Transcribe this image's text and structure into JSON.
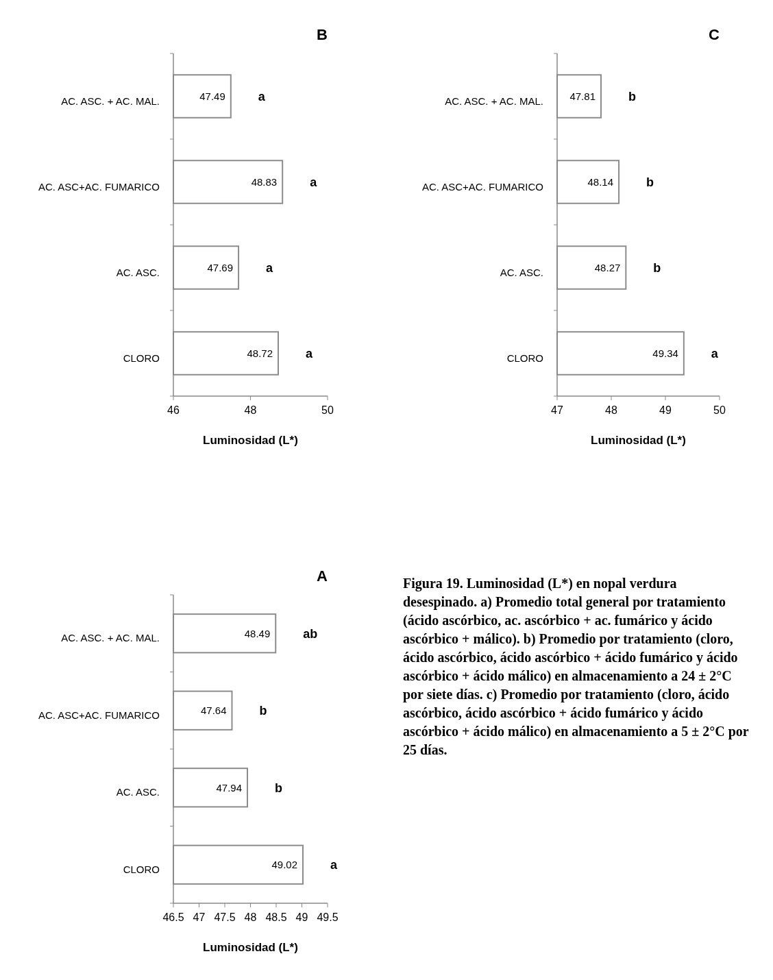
{
  "chart_data": [
    {
      "type": "bar",
      "orientation": "horizontal",
      "title": "B",
      "xlabel": "Luminosidad (L*)",
      "categories": [
        "AC. ASC. + AC. MAL.",
        "AC. ASC+AC. FUMARICO",
        "AC. ASC.",
        "CLORO"
      ],
      "values": [
        47.49,
        48.83,
        47.69,
        48.72
      ],
      "color": "#ffffff",
      "xlim": [
        46,
        50
      ],
      "xticks": [
        46,
        48,
        50
      ],
      "data_labels": true,
      "annotations": [
        {
          "text": "a",
          "x": 47.49,
          "y": "AC. ASC. + AC. MAL."
        },
        {
          "text": "a",
          "x": 48.83,
          "y": "AC. ASC+AC. FUMARICO"
        },
        {
          "text": "a",
          "x": 47.69,
          "y": "AC. ASC."
        },
        {
          "text": "a",
          "x": 48.72,
          "y": "CLORO"
        }
      ]
    },
    {
      "type": "bar",
      "orientation": "horizontal",
      "title": "C",
      "xlabel": "Luminosidad (L*)",
      "categories": [
        "AC. ASC. + AC. MAL.",
        "AC. ASC+AC. FUMARICO",
        "AC. ASC.",
        "CLORO"
      ],
      "values": [
        47.81,
        48.14,
        48.27,
        49.34
      ],
      "color": "#ffffff",
      "xlim": [
        47,
        50
      ],
      "xticks": [
        47,
        48,
        49,
        50
      ],
      "data_labels": true,
      "annotations": [
        {
          "text": "b",
          "x": 47.81,
          "y": "AC. ASC. + AC. MAL."
        },
        {
          "text": "b",
          "x": 48.14,
          "y": "AC. ASC+AC. FUMARICO"
        },
        {
          "text": "b",
          "x": 48.27,
          "y": "AC. ASC."
        },
        {
          "text": "a",
          "x": 49.34,
          "y": "CLORO"
        }
      ]
    },
    {
      "type": "bar",
      "orientation": "horizontal",
      "title": "A",
      "xlabel": "Luminosidad (L*)",
      "categories": [
        "AC. ASC. + AC. MAL.",
        "AC. ASC+AC. FUMARICO",
        "AC. ASC.",
        "CLORO"
      ],
      "values": [
        48.49,
        47.64,
        47.94,
        49.02
      ],
      "color": "#ffffff",
      "xlim": [
        46.5,
        49.5
      ],
      "xticks": [
        46.5,
        47,
        47.5,
        48,
        48.5,
        49,
        49.5
      ],
      "data_labels": true,
      "annotations": [
        {
          "text": "ab",
          "x": 48.49,
          "y": "AC. ASC. + AC. MAL."
        },
        {
          "text": "b",
          "x": 47.64,
          "y": "AC. ASC+AC. FUMARICO"
        },
        {
          "text": "b",
          "x": 47.94,
          "y": "AC. ASC."
        },
        {
          "text": "a",
          "x": 49.02,
          "y": "CLORO"
        }
      ]
    },
    {
      "type": "other",
      "annotations": [
        "Figura 19. Luminosidad (L*) en nopal verdura desespinado. a) Promedio total general por tratamiento (ácido ascórbico, ac. ascórbico + ac. fumárico y ácido ascórbico + málico). b) Promedio por tratamiento (cloro, ácido ascórbico, ácido ascórbico + ácido fumárico y ácido ascórbico + ácido málico) en almacenamiento a 24 ± 2°C por siete días. c) Promedio por tratamiento (cloro, ácido ascórbico, ácido ascórbico + ácido fumárico y ácido ascórbico + ácido málico) en almacenamiento a 5 ± 2°C por 25 días."
      ]
    }
  ]
}
